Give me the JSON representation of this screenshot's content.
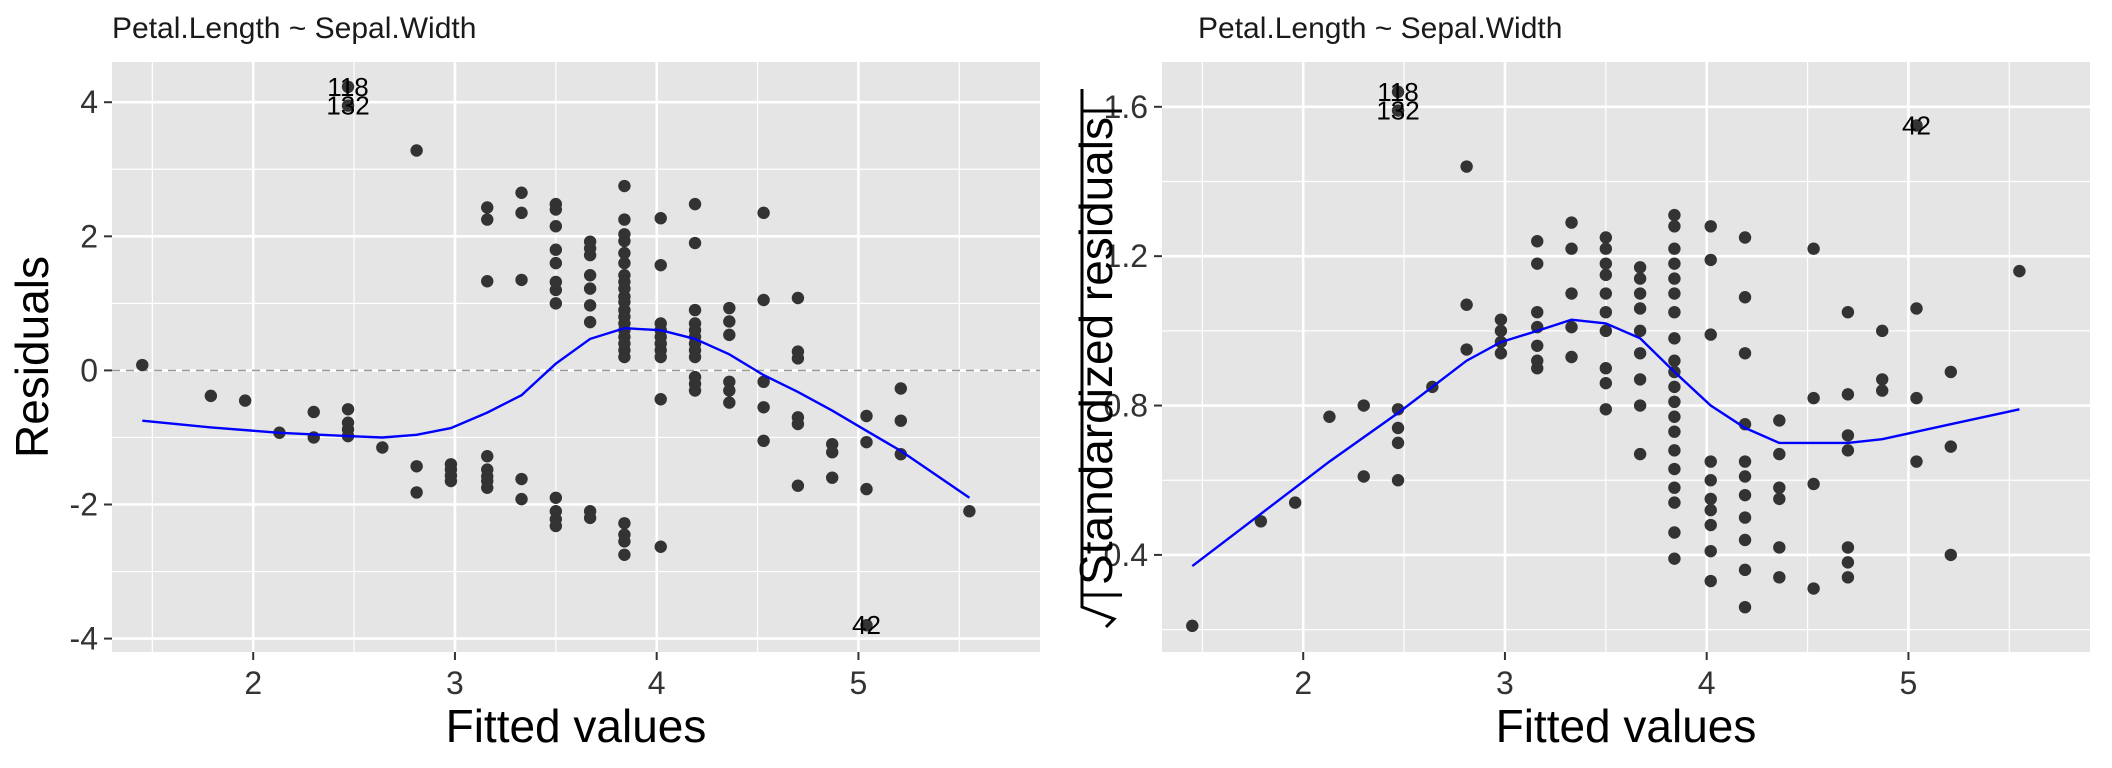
{
  "colors": {
    "panel_background": "#E5E5E5",
    "grid_major": "#FFFFFF",
    "points": "#333333",
    "smooth_line": "#0000FF",
    "zero_line": "#999999"
  },
  "chart_data": [
    {
      "type": "scatter",
      "title": "Petal.Length ~ Sepal.Width",
      "xlabel": "Fitted values",
      "ylabel": "Residuals",
      "xlim": [
        1.3,
        5.9
      ],
      "ylim": [
        -4.2,
        4.6
      ],
      "xticks": [
        2,
        3,
        4,
        5
      ],
      "yticks": [
        -4,
        -2,
        0,
        2,
        4
      ],
      "xtick_labels": [
        "2",
        "3",
        "4",
        "5"
      ],
      "ytick_labels": [
        "-4",
        "-2",
        "0",
        "2",
        "4"
      ],
      "reference_line": {
        "y": 0,
        "style": "dashed"
      },
      "grid": true,
      "points": [
        [
          1.45,
          0.08
        ],
        [
          1.79,
          -0.38
        ],
        [
          1.96,
          -0.45
        ],
        [
          2.13,
          -0.93
        ],
        [
          2.3,
          -0.62
        ],
        [
          2.3,
          -1.0
        ],
        [
          2.47,
          -0.58
        ],
        [
          2.47,
          -0.78
        ],
        [
          2.47,
          -0.88
        ],
        [
          2.47,
          -0.98
        ],
        [
          2.64,
          -1.15
        ],
        [
          2.81,
          3.28
        ],
        [
          2.81,
          -1.43
        ],
        [
          2.81,
          -1.82
        ],
        [
          2.98,
          -1.4
        ],
        [
          2.98,
          -1.48
        ],
        [
          2.98,
          -1.57
        ],
        [
          2.98,
          -1.65
        ],
        [
          3.16,
          2.43
        ],
        [
          3.16,
          2.25
        ],
        [
          3.16,
          1.33
        ],
        [
          3.16,
          -1.28
        ],
        [
          3.16,
          -1.48
        ],
        [
          3.16,
          -1.58
        ],
        [
          3.16,
          -1.65
        ],
        [
          3.16,
          -1.75
        ],
        [
          3.33,
          2.65
        ],
        [
          3.33,
          2.35
        ],
        [
          3.33,
          1.35
        ],
        [
          3.33,
          -1.62
        ],
        [
          3.33,
          -1.92
        ],
        [
          3.5,
          2.48
        ],
        [
          3.5,
          2.4
        ],
        [
          3.5,
          2.15
        ],
        [
          3.5,
          1.8
        ],
        [
          3.5,
          1.6
        ],
        [
          3.5,
          1.32
        ],
        [
          3.5,
          1.2
        ],
        [
          3.5,
          1.0
        ],
        [
          3.5,
          -1.9
        ],
        [
          3.5,
          -2.1
        ],
        [
          3.5,
          -2.22
        ],
        [
          3.5,
          -2.32
        ],
        [
          3.67,
          1.92
        ],
        [
          3.67,
          1.82
        ],
        [
          3.67,
          1.72
        ],
        [
          3.67,
          1.42
        ],
        [
          3.67,
          1.22
        ],
        [
          3.67,
          0.97
        ],
        [
          3.67,
          0.72
        ],
        [
          3.67,
          -2.1
        ],
        [
          3.67,
          -2.2
        ],
        [
          3.84,
          2.75
        ],
        [
          3.84,
          2.25
        ],
        [
          3.84,
          2.03
        ],
        [
          3.84,
          1.93
        ],
        [
          3.84,
          1.75
        ],
        [
          3.84,
          1.6
        ],
        [
          3.84,
          1.42
        ],
        [
          3.84,
          1.32
        ],
        [
          3.84,
          1.22
        ],
        [
          3.84,
          1.1
        ],
        [
          3.84,
          1.02
        ],
        [
          3.84,
          0.9
        ],
        [
          3.84,
          0.8
        ],
        [
          3.84,
          0.7
        ],
        [
          3.84,
          0.6
        ],
        [
          3.84,
          0.5
        ],
        [
          3.84,
          0.4
        ],
        [
          3.84,
          0.3
        ],
        [
          3.84,
          0.2
        ],
        [
          3.84,
          -2.28
        ],
        [
          3.84,
          -2.45
        ],
        [
          3.84,
          -2.55
        ],
        [
          3.84,
          -2.75
        ],
        [
          4.02,
          2.27
        ],
        [
          4.02,
          1.57
        ],
        [
          4.02,
          0.7
        ],
        [
          4.02,
          0.6
        ],
        [
          4.02,
          0.5
        ],
        [
          4.02,
          0.4
        ],
        [
          4.02,
          0.3
        ],
        [
          4.02,
          0.2
        ],
        [
          4.02,
          -0.43
        ],
        [
          4.02,
          -2.63
        ],
        [
          4.19,
          2.48
        ],
        [
          4.19,
          1.9
        ],
        [
          4.19,
          0.9
        ],
        [
          4.19,
          0.7
        ],
        [
          4.19,
          0.6
        ],
        [
          4.19,
          0.5
        ],
        [
          4.19,
          0.4
        ],
        [
          4.19,
          0.3
        ],
        [
          4.19,
          0.2
        ],
        [
          4.19,
          -0.1
        ],
        [
          4.19,
          -0.2
        ],
        [
          4.19,
          -0.3
        ],
        [
          4.36,
          0.93
        ],
        [
          4.36,
          0.73
        ],
        [
          4.36,
          0.53
        ],
        [
          4.36,
          -0.17
        ],
        [
          4.36,
          -0.3
        ],
        [
          4.36,
          -0.48
        ],
        [
          4.53,
          2.35
        ],
        [
          4.53,
          1.05
        ],
        [
          4.53,
          -0.17
        ],
        [
          4.53,
          -0.55
        ],
        [
          4.53,
          -1.05
        ],
        [
          4.7,
          1.08
        ],
        [
          4.7,
          0.28
        ],
        [
          4.7,
          0.18
        ],
        [
          4.7,
          -0.7
        ],
        [
          4.7,
          -0.8
        ],
        [
          4.7,
          -1.72
        ],
        [
          4.87,
          -1.1
        ],
        [
          4.87,
          -1.22
        ],
        [
          4.87,
          -1.6
        ],
        [
          5.04,
          -0.68
        ],
        [
          5.04,
          -1.07
        ],
        [
          5.04,
          -1.77
        ],
        [
          5.21,
          -0.27
        ],
        [
          5.21,
          -0.75
        ],
        [
          5.21,
          -1.25
        ],
        [
          5.55,
          -2.1
        ],
        [
          2.47,
          4.23
        ],
        [
          2.47,
          3.95
        ],
        [
          5.04,
          -3.8
        ]
      ],
      "smooth": {
        "x": [
          1.45,
          1.79,
          2.13,
          2.47,
          2.64,
          2.81,
          2.98,
          3.16,
          3.33,
          3.5,
          3.67,
          3.84,
          4.02,
          4.19,
          4.36,
          4.53,
          4.7,
          4.87,
          5.04,
          5.21,
          5.55
        ],
        "y": [
          -0.75,
          -0.85,
          -0.93,
          -0.98,
          -1.0,
          -0.96,
          -0.86,
          -0.63,
          -0.37,
          0.1,
          0.47,
          0.63,
          0.6,
          0.47,
          0.24,
          -0.07,
          -0.32,
          -0.6,
          -0.9,
          -1.2,
          -1.9
        ]
      },
      "outlier_labels": [
        {
          "text": "118",
          "x": 2.47,
          "y": 4.23
        },
        {
          "text": "132",
          "x": 2.47,
          "y": 3.95
        },
        {
          "text": "42",
          "x": 5.04,
          "y": -3.8
        }
      ]
    },
    {
      "type": "scatter",
      "title": "Petal.Length ~ Sepal.Width",
      "xlabel": "Fitted values",
      "ylabel": "√|Standardized residuals|",
      "ylabel_text": "Standardized residuals",
      "xlim": [
        1.3,
        5.9
      ],
      "ylim": [
        0.14,
        1.72
      ],
      "xticks": [
        2,
        3,
        4,
        5
      ],
      "yticks": [
        0.4,
        0.8,
        1.2,
        1.6
      ],
      "xtick_labels": [
        "2",
        "3",
        "4",
        "5"
      ],
      "ytick_labels": [
        "0.4",
        "0.8",
        "1.2",
        "1.6"
      ],
      "grid": true,
      "points": [
        [
          1.45,
          0.21
        ],
        [
          1.79,
          0.49
        ],
        [
          1.96,
          0.54
        ],
        [
          2.13,
          0.77
        ],
        [
          2.3,
          0.61
        ],
        [
          2.3,
          0.8
        ],
        [
          2.47,
          0.6
        ],
        [
          2.47,
          0.7
        ],
        [
          2.47,
          0.74
        ],
        [
          2.47,
          0.79
        ],
        [
          2.64,
          0.85
        ],
        [
          2.81,
          1.44
        ],
        [
          2.81,
          1.07
        ],
        [
          2.81,
          0.95
        ],
        [
          2.98,
          1.03
        ],
        [
          2.98,
          1.0
        ],
        [
          2.98,
          0.97
        ],
        [
          2.98,
          0.94
        ],
        [
          3.16,
          1.24
        ],
        [
          3.16,
          1.18
        ],
        [
          3.16,
          1.05
        ],
        [
          3.16,
          1.01
        ],
        [
          3.16,
          0.96
        ],
        [
          3.16,
          0.92
        ],
        [
          3.16,
          0.9
        ],
        [
          3.33,
          1.29
        ],
        [
          3.33,
          1.22
        ],
        [
          3.33,
          1.1
        ],
        [
          3.33,
          1.01
        ],
        [
          3.33,
          0.93
        ],
        [
          3.5,
          1.25
        ],
        [
          3.5,
          1.22
        ],
        [
          3.5,
          1.18
        ],
        [
          3.5,
          1.15
        ],
        [
          3.5,
          1.1
        ],
        [
          3.5,
          1.05
        ],
        [
          3.5,
          1.0
        ],
        [
          3.5,
          0.9
        ],
        [
          3.5,
          0.86
        ],
        [
          3.5,
          0.79
        ],
        [
          3.67,
          1.17
        ],
        [
          3.67,
          1.14
        ],
        [
          3.67,
          1.1
        ],
        [
          3.67,
          1.06
        ],
        [
          3.67,
          1.0
        ],
        [
          3.67,
          0.94
        ],
        [
          3.67,
          0.87
        ],
        [
          3.67,
          0.8
        ],
        [
          3.67,
          0.67
        ],
        [
          3.84,
          1.31
        ],
        [
          3.84,
          1.28
        ],
        [
          3.84,
          1.22
        ],
        [
          3.84,
          1.18
        ],
        [
          3.84,
          1.14
        ],
        [
          3.84,
          1.1
        ],
        [
          3.84,
          1.05
        ],
        [
          3.84,
          0.98
        ],
        [
          3.84,
          0.92
        ],
        [
          3.84,
          0.89
        ],
        [
          3.84,
          0.85
        ],
        [
          3.84,
          0.81
        ],
        [
          3.84,
          0.77
        ],
        [
          3.84,
          0.73
        ],
        [
          3.84,
          0.68
        ],
        [
          3.84,
          0.63
        ],
        [
          3.84,
          0.58
        ],
        [
          3.84,
          0.54
        ],
        [
          3.84,
          0.46
        ],
        [
          3.84,
          0.39
        ],
        [
          4.02,
          1.28
        ],
        [
          4.02,
          1.19
        ],
        [
          4.02,
          0.99
        ],
        [
          4.02,
          0.65
        ],
        [
          4.02,
          0.6
        ],
        [
          4.02,
          0.55
        ],
        [
          4.02,
          0.52
        ],
        [
          4.02,
          0.48
        ],
        [
          4.02,
          0.41
        ],
        [
          4.02,
          0.33
        ],
        [
          4.19,
          1.25
        ],
        [
          4.19,
          1.09
        ],
        [
          4.19,
          0.94
        ],
        [
          4.19,
          0.75
        ],
        [
          4.19,
          0.65
        ],
        [
          4.19,
          0.61
        ],
        [
          4.19,
          0.56
        ],
        [
          4.19,
          0.5
        ],
        [
          4.19,
          0.44
        ],
        [
          4.19,
          0.36
        ],
        [
          4.19,
          0.26
        ],
        [
          4.36,
          0.76
        ],
        [
          4.36,
          0.67
        ],
        [
          4.36,
          0.58
        ],
        [
          4.36,
          0.55
        ],
        [
          4.36,
          0.42
        ],
        [
          4.36,
          0.34
        ],
        [
          4.53,
          1.22
        ],
        [
          4.53,
          0.82
        ],
        [
          4.53,
          0.59
        ],
        [
          4.53,
          0.31
        ],
        [
          4.7,
          1.05
        ],
        [
          4.7,
          0.83
        ],
        [
          4.7,
          0.72
        ],
        [
          4.7,
          0.68
        ],
        [
          4.7,
          0.42
        ],
        [
          4.7,
          0.38
        ],
        [
          4.7,
          0.34
        ],
        [
          4.87,
          1.0
        ],
        [
          4.87,
          0.87
        ],
        [
          4.87,
          0.84
        ],
        [
          5.04,
          1.06
        ],
        [
          5.04,
          0.82
        ],
        [
          5.04,
          0.65
        ],
        [
          5.21,
          0.89
        ],
        [
          5.21,
          0.69
        ],
        [
          5.21,
          0.4
        ],
        [
          5.55,
          1.16
        ],
        [
          2.47,
          1.64
        ],
        [
          2.47,
          1.59
        ],
        [
          5.04,
          1.55
        ]
      ],
      "smooth": {
        "x": [
          1.45,
          1.79,
          2.13,
          2.47,
          2.64,
          2.81,
          2.98,
          3.16,
          3.33,
          3.5,
          3.67,
          3.84,
          4.02,
          4.19,
          4.36,
          4.53,
          4.7,
          4.87,
          5.04,
          5.21,
          5.55
        ],
        "y": [
          0.37,
          0.51,
          0.65,
          0.78,
          0.85,
          0.92,
          0.97,
          1.0,
          1.03,
          1.02,
          0.98,
          0.89,
          0.8,
          0.74,
          0.7,
          0.7,
          0.7,
          0.71,
          0.73,
          0.75,
          0.79
        ]
      },
      "outlier_labels": [
        {
          "text": "118",
          "x": 2.47,
          "y": 1.64
        },
        {
          "text": "132",
          "x": 2.47,
          "y": 1.59
        },
        {
          "text": "42",
          "x": 5.04,
          "y": 1.55
        }
      ]
    }
  ]
}
